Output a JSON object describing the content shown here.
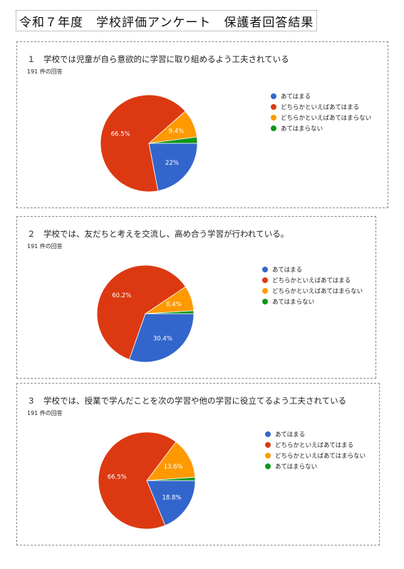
{
  "document": {
    "title": "令和７年度　学校評価アンケート　保護者回答結果"
  },
  "legend_labels": [
    "あてはまる",
    "どちらかといえばあてはまる",
    "どちらかといえばあてはまらない",
    "あてはまらない"
  ],
  "colors": [
    "#3366cc",
    "#dc3912",
    "#ff9900",
    "#109618"
  ],
  "questions": [
    {
      "title": "１　学校では児童が自ら意欲的に学習に取り組めるよう工夫されている",
      "count": "191 件の回答"
    },
    {
      "title": "２　学校では、友だちと考えを交流し、高め合う学習が行われている。",
      "count": "191 件の回答"
    },
    {
      "title": "３　学校では、授業で学んだことを次の学習や他の学習に役立てるよう工夫されている",
      "count": "191 件の回答"
    }
  ],
  "chart_data": [
    {
      "type": "pie",
      "categories": [
        "あてはまる",
        "どちらかといえばあてはまる",
        "どちらかといえばあてはまらない",
        "あてはまらない"
      ],
      "values": [
        22,
        66.5,
        9.4,
        2.1
      ],
      "data_labels": [
        "22%",
        "66.5%",
        "9.4%",
        ""
      ],
      "legend": "right"
    },
    {
      "type": "pie",
      "categories": [
        "あてはまる",
        "どちらかといえばあてはまる",
        "どちらかといえばあてはまらない",
        "あてはまらない"
      ],
      "values": [
        30.4,
        60.2,
        8.4,
        1.0
      ],
      "data_labels": [
        "30.4%",
        "60.2%",
        "8.4%",
        ""
      ],
      "legend": "right"
    },
    {
      "type": "pie",
      "categories": [
        "あてはまる",
        "どちらかといえばあてはまる",
        "どちらかといえばあてはまらない",
        "あてはまらない"
      ],
      "values": [
        18.8,
        66.5,
        13.6,
        1.1
      ],
      "data_labels": [
        "18.8%",
        "66.5%",
        "13.6%",
        ""
      ],
      "legend": "right"
    }
  ]
}
